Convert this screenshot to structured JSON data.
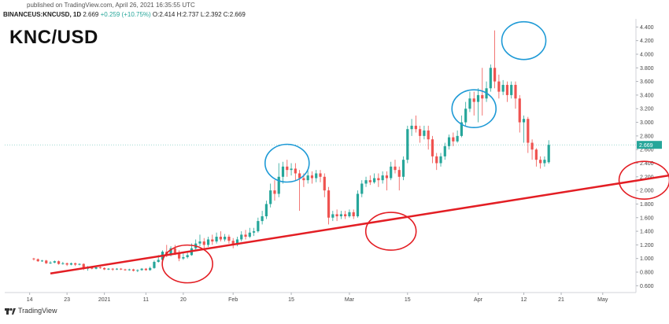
{
  "header": {
    "published": "published on TradingView.com, April 26, 2021 16:35:55 UTC",
    "symbol": "BINANCEUS:KNCUSD, 1D",
    "last": "2.669",
    "change": "+0.259 (+10.75%)",
    "ohlc": "O:2.414 H:2.737 L:2.392 C:2.669"
  },
  "pair_title": "KNC/USD",
  "brand": "TradingView",
  "colors": {
    "up": "#26a69a",
    "down": "#ef5350",
    "trendline": "#e31e24",
    "circle_blue": "#1e9ad6",
    "circle_red": "#e31e24",
    "price_tag": "#26a69a"
  },
  "chart_data": {
    "type": "candlestick",
    "title": "",
    "y_axis": {
      "ticks": [
        "4.400",
        "4.200",
        "4.000",
        "3.800",
        "3.600",
        "3.400",
        "3.200",
        "3.000",
        "2.800",
        "2.600",
        "2.400",
        "2.200",
        "2.000",
        "1.800",
        "1.600",
        "1.400",
        "1.200",
        "1.000",
        "0.800",
        "0.600"
      ],
      "ylim": [
        0.5,
        4.45
      ],
      "position": "right"
    },
    "x_axis": {
      "ticks": [
        {
          "label": "14",
          "day": -18
        },
        {
          "label": "23",
          "day": -9
        },
        {
          "label": "2021",
          "day": 0
        },
        {
          "label": "11",
          "day": 10
        },
        {
          "label": "20",
          "day": 19
        },
        {
          "label": "Feb",
          "day": 31
        },
        {
          "label": "15",
          "day": 45
        },
        {
          "label": "Mar",
          "day": 59
        },
        {
          "label": "15",
          "day": 73
        },
        {
          "label": "Apr",
          "day": 90
        },
        {
          "label": "12",
          "day": 101
        },
        {
          "label": "21",
          "day": 110
        },
        {
          "label": "May",
          "day": 120
        }
      ],
      "start_date": "2020-12-06",
      "end_date": "2021-04-26"
    },
    "last_price": 2.669,
    "ohlc": [
      [
        1.0,
        0.99,
        1.01,
        0.97
      ],
      [
        0.99,
        0.96,
        1.0,
        0.95
      ],
      [
        0.96,
        0.97,
        0.98,
        0.95
      ],
      [
        0.97,
        0.93,
        0.98,
        0.92
      ],
      [
        0.93,
        0.94,
        0.96,
        0.92
      ],
      [
        0.94,
        0.96,
        0.97,
        0.93
      ],
      [
        0.96,
        0.92,
        0.97,
        0.91
      ],
      [
        0.92,
        0.93,
        0.95,
        0.91
      ],
      [
        0.93,
        0.91,
        0.94,
        0.89
      ],
      [
        0.91,
        0.93,
        0.94,
        0.9
      ],
      [
        0.93,
        0.91,
        0.94,
        0.89
      ],
      [
        0.91,
        0.92,
        0.93,
        0.9
      ],
      [
        0.92,
        0.85,
        0.93,
        0.83
      ],
      [
        0.85,
        0.87,
        0.89,
        0.82
      ],
      [
        0.87,
        0.85,
        0.88,
        0.84
      ],
      [
        0.85,
        0.87,
        0.88,
        0.84
      ],
      [
        0.87,
        0.86,
        0.88,
        0.85
      ],
      [
        0.86,
        0.84,
        0.87,
        0.83
      ],
      [
        0.84,
        0.85,
        0.86,
        0.83
      ],
      [
        0.85,
        0.84,
        0.86,
        0.82
      ],
      [
        0.84,
        0.85,
        0.86,
        0.83
      ],
      [
        0.85,
        0.84,
        0.86,
        0.83
      ],
      [
        0.84,
        0.83,
        0.85,
        0.82
      ],
      [
        0.83,
        0.84,
        0.85,
        0.82
      ],
      [
        0.84,
        0.82,
        0.85,
        0.81
      ],
      [
        0.82,
        0.83,
        0.84,
        0.8
      ],
      [
        0.83,
        0.85,
        0.86,
        0.82
      ],
      [
        0.85,
        0.83,
        0.86,
        0.82
      ],
      [
        0.83,
        0.86,
        0.88,
        0.82
      ],
      [
        0.86,
        0.95,
        0.97,
        0.85
      ],
      [
        0.95,
        0.98,
        1.05,
        0.94
      ],
      [
        0.98,
        1.1,
        1.12,
        0.97
      ],
      [
        1.1,
        1.05,
        1.2,
        1.02
      ],
      [
        1.05,
        1.15,
        1.18,
        1.03
      ],
      [
        1.15,
        1.08,
        1.2,
        1.05
      ],
      [
        1.08,
        1.0,
        1.12,
        0.96
      ],
      [
        1.0,
        1.02,
        1.08,
        0.98
      ],
      [
        1.02,
        1.05,
        1.1,
        1.0
      ],
      [
        1.05,
        1.15,
        1.22,
        1.04
      ],
      [
        1.15,
        1.22,
        1.28,
        1.12
      ],
      [
        1.22,
        1.25,
        1.35,
        1.18
      ],
      [
        1.25,
        1.2,
        1.3,
        1.15
      ],
      [
        1.2,
        1.28,
        1.32,
        1.17
      ],
      [
        1.28,
        1.25,
        1.35,
        1.2
      ],
      [
        1.25,
        1.32,
        1.38,
        1.22
      ],
      [
        1.32,
        1.28,
        1.4,
        1.25
      ],
      [
        1.28,
        1.32,
        1.36,
        1.25
      ],
      [
        1.32,
        1.26,
        1.35,
        1.22
      ],
      [
        1.26,
        1.2,
        1.3,
        1.15
      ],
      [
        1.2,
        1.28,
        1.32,
        1.18
      ],
      [
        1.28,
        1.35,
        1.4,
        1.25
      ],
      [
        1.35,
        1.32,
        1.42,
        1.28
      ],
      [
        1.32,
        1.38,
        1.45,
        1.3
      ],
      [
        1.38,
        1.4,
        1.45,
        1.33
      ],
      [
        1.4,
        1.55,
        1.6,
        1.38
      ],
      [
        1.55,
        1.62,
        1.7,
        1.5
      ],
      [
        1.62,
        1.8,
        1.85,
        1.58
      ],
      [
        1.8,
        2.0,
        2.1,
        1.75
      ],
      [
        2.0,
        1.95,
        2.15,
        1.85
      ],
      [
        1.95,
        2.2,
        2.4,
        1.9
      ],
      [
        2.2,
        2.35,
        2.42,
        2.1
      ],
      [
        2.35,
        2.3,
        2.45,
        2.2
      ],
      [
        2.3,
        2.32,
        2.4,
        2.22
      ],
      [
        2.32,
        2.25,
        2.4,
        2.15
      ],
      [
        2.25,
        2.18,
        2.3,
        1.7
      ],
      [
        2.18,
        2.15,
        2.25,
        2.05
      ],
      [
        2.15,
        2.22,
        2.3,
        2.1
      ],
      [
        2.22,
        2.18,
        2.28,
        2.1
      ],
      [
        2.18,
        2.25,
        2.3,
        2.12
      ],
      [
        2.25,
        2.2,
        2.3,
        2.12
      ],
      [
        2.2,
        2.0,
        2.25,
        1.9
      ],
      [
        2.0,
        1.6,
        2.05,
        1.5
      ],
      [
        1.6,
        1.65,
        1.7,
        1.55
      ],
      [
        1.65,
        1.62,
        1.72,
        1.55
      ],
      [
        1.62,
        1.65,
        1.7,
        1.58
      ],
      [
        1.65,
        1.62,
        1.7,
        1.58
      ],
      [
        1.62,
        1.68,
        1.72,
        1.6
      ],
      [
        1.68,
        1.62,
        1.72,
        1.58
      ],
      [
        1.62,
        1.95,
        2.0,
        1.6
      ],
      [
        1.95,
        2.1,
        2.15,
        1.9
      ],
      [
        2.1,
        2.15,
        2.2,
        2.05
      ],
      [
        2.15,
        2.12,
        2.22,
        2.08
      ],
      [
        2.12,
        2.18,
        2.25,
        2.1
      ],
      [
        2.18,
        2.15,
        2.25,
        2.05
      ],
      [
        2.15,
        2.22,
        2.28,
        2.1
      ],
      [
        2.22,
        2.18,
        2.28,
        2.0
      ],
      [
        2.18,
        2.35,
        2.42,
        2.15
      ],
      [
        2.35,
        2.3,
        2.45,
        2.25
      ],
      [
        2.3,
        2.2,
        2.35,
        2.0
      ],
      [
        2.2,
        2.45,
        2.5,
        2.15
      ],
      [
        2.45,
        2.9,
        2.95,
        2.4
      ],
      [
        2.9,
        2.95,
        3.05,
        2.8
      ],
      [
        2.95,
        2.9,
        3.1,
        2.85
      ],
      [
        2.9,
        2.8,
        2.95,
        2.7
      ],
      [
        2.8,
        2.88,
        2.95,
        2.75
      ],
      [
        2.88,
        2.75,
        2.95,
        2.6
      ],
      [
        2.75,
        2.5,
        2.8,
        2.4
      ],
      [
        2.5,
        2.4,
        2.55,
        2.3
      ],
      [
        2.4,
        2.5,
        2.55,
        2.35
      ],
      [
        2.5,
        2.65,
        2.7,
        2.45
      ],
      [
        2.65,
        2.78,
        2.82,
        2.6
      ],
      [
        2.78,
        2.72,
        2.85,
        2.65
      ],
      [
        2.72,
        2.8,
        2.88,
        2.7
      ],
      [
        2.8,
        3.0,
        3.1,
        2.78
      ],
      [
        3.0,
        3.2,
        3.3,
        2.95
      ],
      [
        3.2,
        3.35,
        3.45,
        3.15
      ],
      [
        3.35,
        3.3,
        3.45,
        3.1
      ],
      [
        3.3,
        3.4,
        3.5,
        3.0
      ],
      [
        3.4,
        3.35,
        3.8,
        3.1
      ],
      [
        3.35,
        3.5,
        3.6,
        3.3
      ],
      [
        3.5,
        3.8,
        3.85,
        3.45
      ],
      [
        3.8,
        3.6,
        4.35,
        3.5
      ],
      [
        3.6,
        3.45,
        3.7,
        3.35
      ],
      [
        3.45,
        3.55,
        3.62,
        3.4
      ],
      [
        3.55,
        3.4,
        3.6,
        3.3
      ],
      [
        3.4,
        3.55,
        3.6,
        3.35
      ],
      [
        3.55,
        3.35,
        3.6,
        3.2
      ],
      [
        3.35,
        3.0,
        3.4,
        2.85
      ],
      [
        3.0,
        3.05,
        3.1,
        2.7
      ],
      [
        3.05,
        2.7,
        3.08,
        2.55
      ],
      [
        2.7,
        2.6,
        2.75,
        2.45
      ],
      [
        2.6,
        2.45,
        2.62,
        2.35
      ],
      [
        2.45,
        2.4,
        2.5,
        2.32
      ],
      [
        2.4,
        2.45,
        2.5,
        2.35
      ],
      [
        2.414,
        2.669,
        2.737,
        2.392
      ]
    ],
    "annotations": {
      "trendline": [
        [
          4,
          0.78
        ],
        [
          153,
          2.22
        ]
      ],
      "blue_circles": [
        [
          61,
          2.4
        ],
        [
          106,
          3.2
        ],
        [
          118,
          4.2
        ]
      ],
      "red_circles": [
        [
          37,
          0.92
        ],
        [
          86,
          1.4
        ],
        [
          147,
          2.15
        ]
      ]
    }
  }
}
